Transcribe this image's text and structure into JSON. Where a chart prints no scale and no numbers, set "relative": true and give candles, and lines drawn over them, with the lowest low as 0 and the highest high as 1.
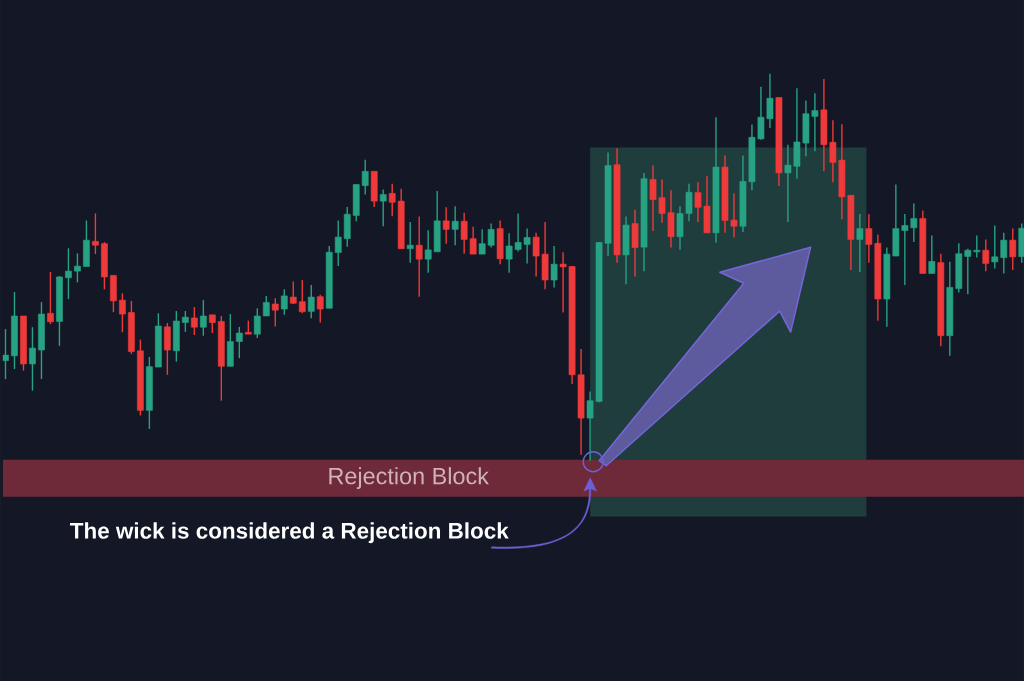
{
  "chart_data": {
    "type": "candlestick",
    "relative": true,
    "categories": [
      null,
      null,
      null,
      null,
      null,
      null,
      null,
      null,
      null,
      null,
      null,
      null,
      null,
      null,
      null,
      null,
      null,
      null,
      null,
      null,
      null,
      null,
      null,
      null,
      null,
      null,
      null,
      null,
      null,
      null,
      null,
      null,
      null,
      null,
      null,
      null,
      null,
      null,
      null,
      null,
      null,
      null,
      null,
      null,
      null,
      null,
      null,
      null,
      null,
      null,
      null,
      null,
      null,
      null,
      null,
      null,
      null,
      null,
      null,
      null,
      null,
      null,
      null,
      null,
      null,
      null,
      null,
      null,
      null,
      null,
      null,
      null,
      null,
      null,
      null,
      null,
      null,
      null,
      null,
      null,
      null,
      null,
      null,
      null,
      null,
      null,
      null,
      null,
      null,
      null,
      null,
      null,
      null,
      null,
      null,
      null,
      null,
      null,
      null,
      null,
      null,
      null,
      null,
      null,
      null,
      null,
      null,
      null,
      null,
      null,
      null,
      null,
      null,
      null
    ],
    "ohlc": [
      [
        0.258,
        0.34,
        0.211,
        0.273
      ],
      [
        0.271,
        0.436,
        0.237,
        0.374
      ],
      [
        0.374,
        0.374,
        0.233,
        0.25
      ],
      [
        0.25,
        0.345,
        0.181,
        0.291
      ],
      [
        0.286,
        0.41,
        0.211,
        0.379
      ],
      [
        0.381,
        0.488,
        0.353,
        0.359
      ],
      [
        0.36,
        0.477,
        0.297,
        0.475
      ],
      [
        0.473,
        0.549,
        0.418,
        0.49
      ],
      [
        0.49,
        0.536,
        0.461,
        0.503
      ],
      [
        0.502,
        0.621,
        0.502,
        0.57
      ],
      [
        0.567,
        0.639,
        0.534,
        0.557
      ],
      [
        0.561,
        0.565,
        0.443,
        0.475
      ],
      [
        0.479,
        0.479,
        0.384,
        0.413
      ],
      [
        0.415,
        0.433,
        0.332,
        0.379
      ],
      [
        0.383,
        0.413,
        0.276,
        0.282
      ],
      [
        0.284,
        0.313,
        0.117,
        0.13
      ],
      [
        0.13,
        0.268,
        0.082,
        0.243
      ],
      [
        0.242,
        0.381,
        0.242,
        0.348
      ],
      [
        0.346,
        0.356,
        0.222,
        0.286
      ],
      [
        0.284,
        0.387,
        0.256,
        0.361
      ],
      [
        0.357,
        0.387,
        0.333,
        0.371
      ],
      [
        0.369,
        0.397,
        0.325,
        0.345
      ],
      [
        0.345,
        0.415,
        0.323,
        0.374
      ],
      [
        0.377,
        0.377,
        0.33,
        0.357
      ],
      [
        0.36,
        0.374,
        0.155,
        0.244
      ],
      [
        0.244,
        0.379,
        0.244,
        0.308
      ],
      [
        0.308,
        0.346,
        0.265,
        0.33
      ],
      [
        0.332,
        0.362,
        0.327,
        0.327
      ],
      [
        0.327,
        0.394,
        0.317,
        0.374
      ],
      [
        0.374,
        0.426,
        0.374,
        0.409
      ],
      [
        0.405,
        0.42,
        0.347,
        0.389
      ],
      [
        0.392,
        0.443,
        0.377,
        0.426
      ],
      [
        0.423,
        0.463,
        0.405,
        0.407
      ],
      [
        0.411,
        0.467,
        0.381,
        0.385
      ],
      [
        0.386,
        0.454,
        0.368,
        0.423
      ],
      [
        0.424,
        0.429,
        0.357,
        0.392
      ],
      [
        0.394,
        0.555,
        0.394,
        0.539
      ],
      [
        0.538,
        0.621,
        0.503,
        0.578
      ],
      [
        0.574,
        0.656,
        0.553,
        0.637
      ],
      [
        0.634,
        0.714,
        0.619,
        0.714
      ],
      [
        0.711,
        0.778,
        0.688,
        0.748
      ],
      [
        0.748,
        0.748,
        0.656,
        0.671
      ],
      [
        0.671,
        0.701,
        0.606,
        0.688
      ],
      [
        0.691,
        0.716,
        0.632,
        0.668
      ],
      [
        0.671,
        0.703,
        0.548,
        0.548
      ],
      [
        0.548,
        0.617,
        0.512,
        0.557
      ],
      [
        0.557,
        0.631,
        0.424,
        0.521
      ],
      [
        0.521,
        0.596,
        0.486,
        0.545
      ],
      [
        0.54,
        0.697,
        0.54,
        0.62
      ],
      [
        0.62,
        0.655,
        0.561,
        0.598
      ],
      [
        0.598,
        0.658,
        0.557,
        0.619
      ],
      [
        0.619,
        0.641,
        0.535,
        0.572
      ],
      [
        0.574,
        0.605,
        0.534,
        0.534
      ],
      [
        0.534,
        0.598,
        0.534,
        0.561
      ],
      [
        0.557,
        0.613,
        0.551,
        0.598
      ],
      [
        0.6,
        0.621,
        0.508,
        0.522
      ],
      [
        0.521,
        0.588,
        0.486,
        0.555
      ],
      [
        0.546,
        0.639,
        0.541,
        0.564
      ],
      [
        0.559,
        0.6,
        0.51,
        0.577
      ],
      [
        0.578,
        0.589,
        0.476,
        0.529
      ],
      [
        0.534,
        0.617,
        0.443,
        0.467
      ],
      [
        0.467,
        0.555,
        0.448,
        0.508
      ],
      [
        0.508,
        0.539,
        0.383,
        0.501
      ],
      [
        0.502,
        0.503,
        0.198,
        0.222
      ],
      [
        0.222,
        0.289,
        0.015,
        0.11
      ],
      [
        0.11,
        0.179,
        0,
        0.155
      ],
      [
        0.153,
        0.565,
        0.151,
        0.564
      ],
      [
        0.562,
        0.797,
        0.529,
        0.763
      ],
      [
        0.765,
        0.808,
        0.512,
        0.532
      ],
      [
        0.532,
        0.631,
        0.456,
        0.609
      ],
      [
        0.613,
        0.649,
        0.476,
        0.551
      ],
      [
        0.552,
        0.744,
        0.49,
        0.729
      ],
      [
        0.727,
        0.763,
        0.594,
        0.675
      ],
      [
        0.68,
        0.727,
        0.615,
        0.639
      ],
      [
        0.641,
        0.699,
        0.551,
        0.579
      ],
      [
        0.579,
        0.658,
        0.545,
        0.639
      ],
      [
        0.639,
        0.716,
        0.619,
        0.694
      ],
      [
        0.693,
        0.72,
        0.617,
        0.655
      ],
      [
        0.658,
        0.735,
        0.589,
        0.589
      ],
      [
        0.589,
        0.888,
        0.564,
        0.759
      ],
      [
        0.759,
        0.789,
        0.589,
        0.621
      ],
      [
        0.622,
        0.691,
        0.577,
        0.606
      ],
      [
        0.606,
        0.789,
        0.591,
        0.722
      ],
      [
        0.721,
        0.869,
        0.699,
        0.836
      ],
      [
        0.832,
        0.967,
        0.83,
        0.888
      ],
      [
        0.884,
        1,
        0.86,
        0.937
      ],
      [
        0.939,
        0.939,
        0.71,
        0.744
      ],
      [
        0.744,
        0.817,
        0.617,
        0.764
      ],
      [
        0.761,
        0.963,
        0.729,
        0.824
      ],
      [
        0.821,
        0.931,
        0.787,
        0.897
      ],
      [
        0.89,
        0.95,
        0.8,
        0.905
      ],
      [
        0.907,
        0.987,
        0.748,
        0.817
      ],
      [
        0.823,
        0.88,
        0.72,
        0.771
      ],
      [
        0.777,
        0.87,
        0.624,
        0.682
      ],
      [
        0.686,
        0.686,
        0.493,
        0.572
      ],
      [
        0.572,
        0.638,
        0.488,
        0.6
      ],
      [
        0.6,
        0.637,
        0.512,
        0.559
      ],
      [
        0.562,
        0.585,
        0.362,
        0.418
      ],
      [
        0.418,
        0.551,
        0.346,
        0.534
      ],
      [
        0.529,
        0.714,
        0.529,
        0.6
      ],
      [
        0.595,
        0.638,
        0.454,
        0.608
      ],
      [
        0.602,
        0.665,
        0.565,
        0.626
      ],
      [
        0.626,
        0.647,
        0.484,
        0.484
      ],
      [
        0.484,
        0.582,
        0.484,
        0.515
      ],
      [
        0.512,
        0.535,
        0.296,
        0.323
      ],
      [
        0.323,
        0.514,
        0.271,
        0.448
      ],
      [
        0.445,
        0.562,
        0.435,
        0.535
      ],
      [
        0.528,
        0.548,
        0.43,
        0.544
      ],
      [
        0.54,
        0.582,
        0.525,
        0.544
      ],
      [
        0.544,
        0.572,
        0.49,
        0.51
      ],
      [
        0.514,
        0.608,
        0.497,
        0.527
      ],
      [
        0.525,
        0.589,
        0.484,
        0.57
      ],
      [
        0.57,
        0.6,
        0.493,
        0.527
      ],
      [
        0.527,
        0.613,
        0.512,
        0.601
      ]
    ],
    "colors": [
      "#27a283",
      "#27a283",
      "#ee3a3a",
      "#27a283",
      "#27a283",
      "#ee3a3a",
      "#27a283",
      "#27a283",
      "#27a283",
      "#27a283",
      "#ee3a3a",
      "#ee3a3a",
      "#ee3a3a",
      "#ee3a3a",
      "#ee3a3a",
      "#ee3a3a",
      "#27a283",
      "#27a283",
      "#ee3a3a",
      "#27a283",
      "#27a283",
      "#ee3a3a",
      "#27a283",
      "#ee3a3a",
      "#ee3a3a",
      "#27a283",
      "#27a283",
      "#ee3a3a",
      "#27a283",
      "#27a283",
      "#ee3a3a",
      "#27a283",
      "#ee3a3a",
      "#ee3a3a",
      "#27a283",
      "#ee3a3a",
      "#27a283",
      "#27a283",
      "#27a283",
      "#27a283",
      "#27a283",
      "#ee3a3a",
      "#27a283",
      "#ee3a3a",
      "#ee3a3a",
      "#27a283",
      "#ee3a3a",
      "#27a283",
      "#27a283",
      "#ee3a3a",
      "#27a283",
      "#ee3a3a",
      "#ee3a3a",
      "#27a283",
      "#27a283",
      "#ee3a3a",
      "#27a283",
      "#27a283",
      "#27a283",
      "#ee3a3a",
      "#ee3a3a",
      "#27a283",
      "#ee3a3a",
      "#ee3a3a",
      "#ee3a3a",
      "#27a283",
      "#27a283",
      "#27a283",
      "#ee3a3a",
      "#27a283",
      "#ee3a3a",
      "#27a283",
      "#ee3a3a",
      "#ee3a3a",
      "#ee3a3a",
      "#27a283",
      "#27a283",
      "#ee3a3a",
      "#ee3a3a",
      "#27a283",
      "#ee3a3a",
      "#ee3a3a",
      "#27a283",
      "#27a283",
      "#27a283",
      "#27a283",
      "#ee3a3a",
      "#27a283",
      "#27a283",
      "#27a283",
      "#27a283",
      "#ee3a3a",
      "#ee3a3a",
      "#ee3a3a",
      "#ee3a3a",
      "#27a283",
      "#ee3a3a",
      "#ee3a3a",
      "#27a283",
      "#27a283",
      "#27a283",
      "#27a283",
      "#ee3a3a",
      "#27a283",
      "#ee3a3a",
      "#27a283",
      "#27a283",
      "#27a283",
      "#27a283",
      "#ee3a3a",
      "#27a283",
      "#27a283",
      "#ee3a3a",
      "#27a283"
    ],
    "bands": [
      {
        "axis": "y",
        "from": -0.093,
        "to": 0.003,
        "label": "Rejection Block",
        "color": "#6e2a38"
      }
    ],
    "annotations": [
      "The wick is considered a Rejection Block"
    ]
  }
}
